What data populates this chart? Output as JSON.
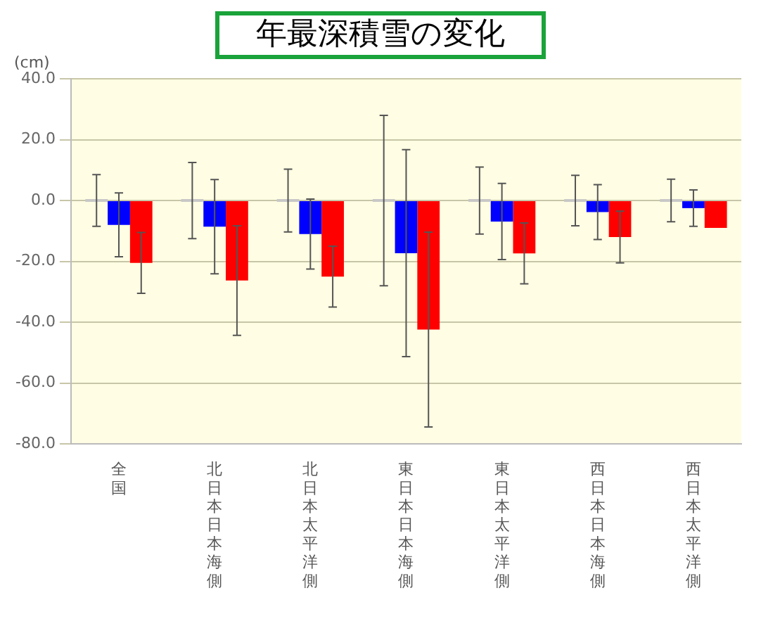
{
  "chart_data": {
    "type": "bar",
    "title": "年最深積雪の変化",
    "ylabel": "(cm)",
    "categories": [
      "全国",
      "北日本日本海側",
      "北日本太平洋側",
      "東日本日本海側",
      "東日本太平洋側",
      "西日本日本海側",
      "西日本太平洋側"
    ],
    "series": [
      {
        "color": "#c8c8c8",
        "values": [
          0,
          0,
          0,
          0,
          0,
          0,
          0
        ],
        "errors": [
          8.5,
          12.5,
          10.3,
          28,
          11,
          8.3,
          7
        ]
      },
      {
        "color": "#0000ff",
        "values": [
          -8,
          -8.6,
          -11,
          -17.3,
          -6.9,
          -3.8,
          -2.5
        ],
        "errors": [
          10.5,
          15.5,
          11.5,
          34,
          12.5,
          9,
          6
        ]
      },
      {
        "color": "#ff0000",
        "values": [
          -20.5,
          -26.3,
          -25,
          -42.4,
          -17.4,
          -12,
          -9
        ],
        "errors": [
          10,
          18,
          10,
          32,
          10,
          8.5,
          null
        ]
      }
    ],
    "ylim": [
      -80,
      40
    ],
    "yticks": [
      {
        "value": -80,
        "label": "-80.0"
      },
      {
        "value": -60,
        "label": "-60.0"
      },
      {
        "value": -40,
        "label": "-40.0"
      },
      {
        "value": -20,
        "label": "-20.0"
      },
      {
        "value": 0,
        "label": "0.0"
      },
      {
        "value": 20,
        "label": "20.0"
      },
      {
        "value": 40,
        "label": "40.0"
      }
    ],
    "grid": "y"
  }
}
